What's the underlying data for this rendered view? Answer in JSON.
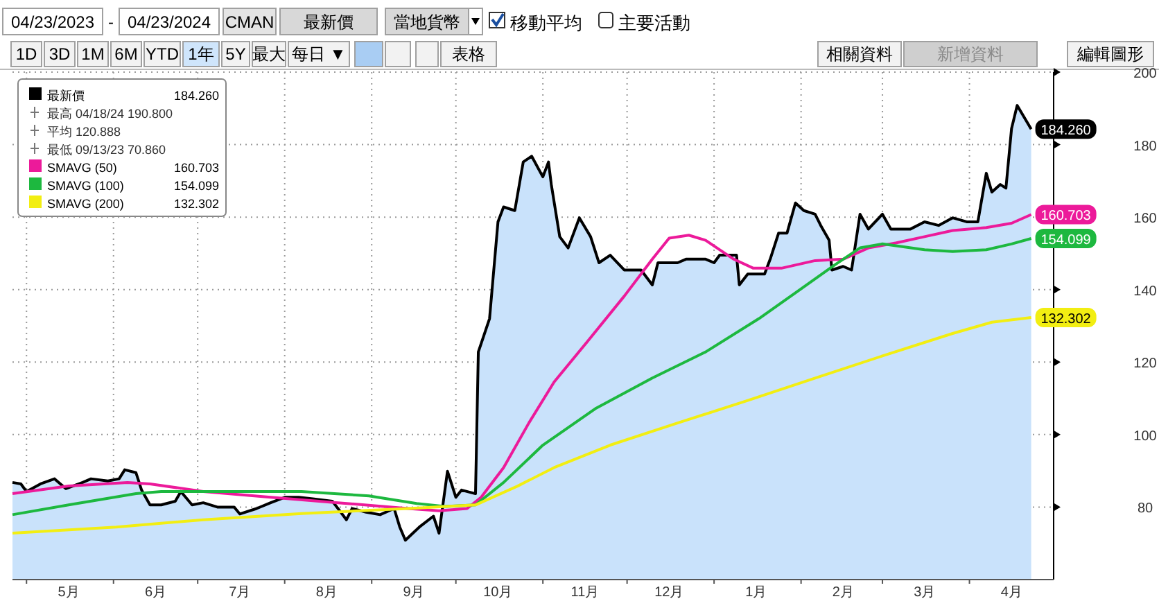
{
  "chart_data": {
    "type": "area",
    "legend": "top left",
    "grid": true,
    "xlim": [
      "2023-04-26",
      "2024-05-01"
    ],
    "ylim": [
      60,
      200
    ],
    "yticks": [
      80,
      100,
      120,
      140,
      160,
      180,
      200
    ],
    "xticks": [
      {
        "value": "2023-05-01",
        "label": null
      },
      {
        "value": "2023-05-16",
        "label": "5月"
      },
      {
        "value": "2023-06-01",
        "label": null
      },
      {
        "value": "2023-06-16",
        "label": "6月"
      },
      {
        "value": "2023-07-01",
        "label": null
      },
      {
        "value": "2023-07-16",
        "label": "7月"
      },
      {
        "value": "2023-08-01",
        "label": null
      },
      {
        "value": "2023-08-16",
        "label": "8月"
      },
      {
        "value": "2023-09-01",
        "label": null
      },
      {
        "value": "2023-09-16",
        "label": "9月"
      },
      {
        "value": "2023-10-01",
        "label": null
      },
      {
        "value": "2023-10-16",
        "label": "10月"
      },
      {
        "value": "2023-11-01",
        "label": null
      },
      {
        "value": "2023-11-16",
        "label": "11月"
      },
      {
        "value": "2023-12-01",
        "label": null
      },
      {
        "value": "2023-12-16",
        "label": "12月"
      },
      {
        "value": "2024-01-01",
        "label": null
      },
      {
        "value": "2024-01-16",
        "label": "1月"
      },
      {
        "value": "2024-02-01",
        "label": null
      },
      {
        "value": "2024-02-16",
        "label": "2月"
      },
      {
        "value": "2024-03-01",
        "label": null
      },
      {
        "value": "2024-03-16",
        "label": "3月"
      },
      {
        "value": "2024-04-01",
        "label": null
      },
      {
        "value": "2024-04-16",
        "label": "4月"
      }
    ],
    "annotations": [
      "04/23/2023",
      "04/23/2024",
      "CMAN",
      "最新價",
      "當地貨幣",
      "移動平均",
      "主要活動",
      "1D",
      "3D",
      "1M",
      "6M",
      "YTD",
      "1年",
      "5Y",
      "最大",
      "每日 ▼",
      "表格",
      "相關資料",
      "新增資料",
      "編輯圖形",
      "最高 04/18/24 190.800",
      "平均 120.888",
      "最低 09/13/23 70.860",
      "-"
    ],
    "series": [
      {
        "name": "最新價",
        "color": "#000000",
        "x": [
          "2023-04-26",
          "2023-04-29",
          "2023-05-01",
          "2023-05-06",
          "2023-05-11",
          "2023-05-15",
          "2023-05-21",
          "2023-05-24",
          "2023-05-30",
          "2023-06-03",
          "2023-06-05",
          "2023-06-09",
          "2023-06-11",
          "2023-06-14",
          "2023-06-18",
          "2023-06-23",
          "2023-06-25",
          "2023-06-29",
          "2023-07-03",
          "2023-07-08",
          "2023-07-14",
          "2023-07-16",
          "2023-07-22",
          "2023-07-27",
          "2023-08-01",
          "2023-08-06",
          "2023-08-11",
          "2023-08-18",
          "2023-08-20",
          "2023-08-23",
          "2023-08-25",
          "2023-08-30",
          "2023-09-04",
          "2023-09-09",
          "2023-09-11",
          "2023-09-13",
          "2023-09-18",
          "2023-09-23",
          "2023-09-25",
          "2023-09-28",
          "2023-10-01",
          "2023-10-03",
          "2023-10-08",
          "2023-10-09",
          "2023-10-13",
          "2023-10-16",
          "2023-10-18",
          "2023-10-22",
          "2023-10-25",
          "2023-10-28",
          "2023-11-01",
          "2023-11-03",
          "2023-11-04",
          "2023-11-07",
          "2023-11-10",
          "2023-11-14",
          "2023-11-18",
          "2023-11-21",
          "2023-11-25",
          "2023-11-30",
          "2023-12-06",
          "2023-12-10",
          "2023-12-12",
          "2023-12-15",
          "2023-12-19",
          "2023-12-22",
          "2023-12-29",
          "2024-01-01",
          "2024-01-03",
          "2024-01-09",
          "2024-01-10",
          "2024-01-13",
          "2024-01-19",
          "2024-01-21",
          "2024-01-24",
          "2024-01-27",
          "2024-01-30",
          "2024-02-02",
          "2024-02-06",
          "2024-02-08",
          "2024-02-11",
          "2024-02-12",
          "2024-02-16",
          "2024-02-19",
          "2024-02-22",
          "2024-02-25",
          "2024-03-01",
          "2024-03-04",
          "2024-03-11",
          "2024-03-16",
          "2024-03-21",
          "2024-03-26",
          "2024-03-31",
          "2024-04-04",
          "2024-04-07",
          "2024-04-09",
          "2024-04-12",
          "2024-04-14",
          "2024-04-16",
          "2024-04-18",
          "2024-04-23"
        ],
        "values": [
          86.8,
          86.4,
          84.3,
          86.4,
          87.8,
          85.1,
          86.8,
          87.8,
          87.2,
          87.8,
          90.3,
          89.5,
          84.7,
          80.6,
          80.6,
          81.6,
          84.3,
          80.6,
          81.2,
          80,
          80,
          78.1,
          79.6,
          81.2,
          82.7,
          82.7,
          82.3,
          81.6,
          79.6,
          76.5,
          79.6,
          78.6,
          77.9,
          79.6,
          74.5,
          70.86,
          74.5,
          77.5,
          72.8,
          89.9,
          82.7,
          84.7,
          83.7,
          122.8,
          132,
          158.7,
          162.8,
          161.8,
          175.2,
          176.8,
          171.1,
          175.2,
          169,
          154.6,
          151.5,
          159.8,
          154.6,
          147.4,
          149.5,
          145.4,
          145.4,
          141.3,
          147.4,
          147.4,
          147.4,
          148.4,
          148.4,
          147.4,
          149.5,
          149.5,
          141.3,
          144.3,
          144.3,
          148.4,
          155.6,
          155.6,
          163.9,
          161.8,
          160.8,
          157.7,
          153.6,
          145.4,
          146.4,
          145.4,
          160.8,
          156.7,
          160.8,
          156.7,
          156.7,
          158.7,
          157.7,
          159.8,
          158.7,
          158.7,
          172.1,
          166.9,
          169,
          168,
          184.4,
          190.8,
          184.26
        ],
        "value_labels": [
          null,
          null,
          null,
          null,
          null,
          null,
          null,
          null,
          null,
          null,
          null,
          null,
          null,
          null,
          null,
          null,
          null,
          null,
          null,
          null,
          null,
          null,
          null,
          null,
          null,
          null,
          null,
          null,
          null,
          null,
          null,
          null,
          null,
          null,
          null,
          null,
          null,
          null,
          null,
          null,
          null,
          null,
          null,
          null,
          null,
          null,
          null,
          null,
          null,
          null,
          null,
          null,
          null,
          null,
          null,
          null,
          null,
          null,
          null,
          null,
          null,
          null,
          null,
          null,
          null,
          null,
          null,
          null,
          null,
          null,
          null,
          null,
          null,
          null,
          null,
          null,
          null,
          null,
          null,
          null,
          null,
          null,
          null,
          null,
          null,
          null,
          null,
          null,
          null,
          null,
          null,
          null,
          null,
          null,
          null,
          null,
          null,
          null,
          null,
          null,
          "184.260"
        ]
      },
      {
        "name": "SMAVG (50)",
        "type": "line",
        "color": "#ec1a9a",
        "x": [
          "2023-04-26",
          "2023-05-16",
          "2023-06-06",
          "2023-06-14",
          "2023-07-03",
          "2023-07-27",
          "2023-08-20",
          "2023-09-14",
          "2023-09-25",
          "2023-10-05",
          "2023-10-10",
          "2023-10-18",
          "2023-10-27",
          "2023-11-05",
          "2023-11-17",
          "2023-11-30",
          "2023-12-10",
          "2023-12-16",
          "2023-12-23",
          "2023-12-29",
          "2024-01-08",
          "2024-01-15",
          "2024-01-25",
          "2024-02-06",
          "2024-02-16",
          "2024-02-25",
          "2024-03-06",
          "2024-03-16",
          "2024-03-26",
          "2024-04-07",
          "2024-04-16",
          "2024-04-23"
        ],
        "values": [
          83.7,
          85.8,
          86.8,
          86.4,
          84.3,
          82.7,
          81.2,
          79.6,
          79,
          79.6,
          82.7,
          90.9,
          103.2,
          114.5,
          125.8,
          138.2,
          148.4,
          154.2,
          155,
          153.6,
          148.4,
          145.9,
          145.9,
          148,
          148.4,
          151.5,
          152.9,
          154.6,
          156.3,
          157.1,
          158.3,
          160.703
        ],
        "value_labels": [
          null,
          null,
          null,
          null,
          null,
          null,
          null,
          null,
          null,
          null,
          null,
          null,
          null,
          null,
          null,
          null,
          null,
          null,
          null,
          null,
          null,
          null,
          null,
          null,
          null,
          null,
          null,
          null,
          null,
          null,
          null,
          "160.703"
        ]
      },
      {
        "name": "SMAVG (100)",
        "type": "line",
        "color": "#1db83f",
        "x": [
          "2023-04-26",
          "2023-05-16",
          "2023-06-09",
          "2023-06-18",
          "2023-07-14",
          "2023-08-07",
          "2023-08-31",
          "2023-09-17",
          "2023-09-27",
          "2023-10-08",
          "2023-10-18",
          "2023-11-01",
          "2023-11-20",
          "2023-12-10",
          "2023-12-29",
          "2024-01-17",
          "2024-02-01",
          "2024-02-13",
          "2024-02-22",
          "2024-03-01",
          "2024-03-16",
          "2024-03-26",
          "2024-04-07",
          "2024-04-16",
          "2024-04-23"
        ],
        "values": [
          77.9,
          80.6,
          83.7,
          84.3,
          84.3,
          84.3,
          83.1,
          81,
          80.2,
          80.6,
          86.8,
          97.1,
          107.3,
          115.6,
          122.8,
          132,
          140.2,
          146.8,
          151.5,
          152.6,
          151,
          150.5,
          151,
          152.6,
          154.099
        ],
        "value_labels": [
          null,
          null,
          null,
          null,
          null,
          null,
          null,
          null,
          null,
          null,
          null,
          null,
          null,
          null,
          null,
          null,
          null,
          null,
          null,
          null,
          null,
          null,
          null,
          null,
          "154.099"
        ]
      },
      {
        "name": "SMAVG (200)",
        "type": "line",
        "color": "#f2ee12",
        "x": [
          "2023-04-26",
          "2023-06-02",
          "2023-07-03",
          "2023-08-07",
          "2023-09-14",
          "2023-10-08",
          "2023-10-23",
          "2023-11-05",
          "2023-11-25",
          "2023-12-19",
          "2024-01-13",
          "2024-02-06",
          "2024-03-01",
          "2024-03-26",
          "2024-04-09",
          "2024-04-23"
        ],
        "values": [
          72.8,
          74.5,
          76.5,
          78.2,
          79.6,
          80.6,
          85.8,
          90.9,
          97.1,
          103.2,
          109.4,
          115.6,
          121.7,
          127.9,
          131,
          132.302
        ],
        "value_labels": [
          null,
          null,
          null,
          null,
          null,
          null,
          null,
          null,
          null,
          null,
          null,
          null,
          null,
          null,
          null,
          "132.302"
        ]
      }
    ]
  }
}
